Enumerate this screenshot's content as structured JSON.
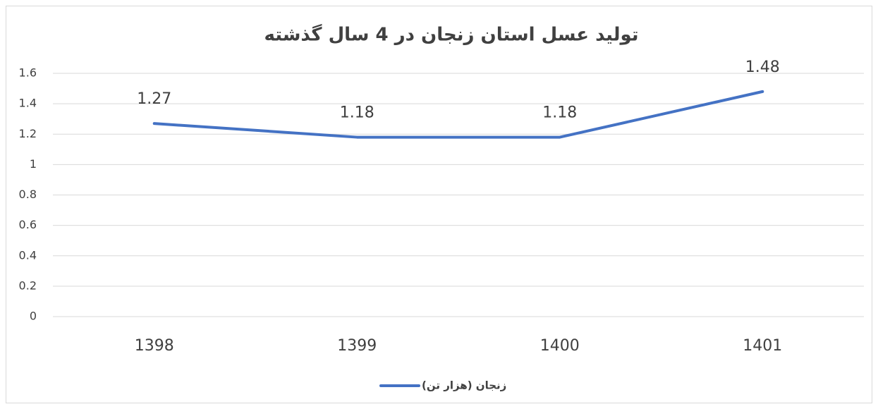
{
  "chart_data": {
    "type": "line",
    "title": "تولید عسل استان زنجان در 4 سال گذشته",
    "categories": [
      "1398",
      "1399",
      "1400",
      "1401"
    ],
    "series": [
      {
        "name": "زنجان (هزار تن)",
        "color": "#4472c4",
        "values": [
          1.27,
          1.18,
          1.18,
          1.48
        ]
      }
    ],
    "ylim": [
      0,
      1.6
    ],
    "yticks": [
      0,
      0.2,
      0.4,
      0.6,
      0.8,
      1,
      1.2,
      1.4,
      1.6
    ],
    "grid": true,
    "legend": "bottom"
  }
}
